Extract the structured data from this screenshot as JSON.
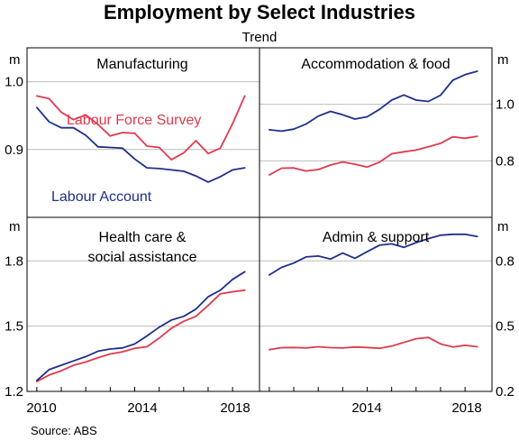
{
  "title": "Employment by Select Industries",
  "subtitle": "Trend",
  "source": "Source:   ABS",
  "left_unit": "m",
  "right_unit": "m",
  "x_ticks": [
    "2010",
    "2014",
    "2018"
  ],
  "colors": {
    "labour_force_survey": "#e03a4e",
    "labour_account": "#1f2f8c",
    "grid": "#bdbdbd",
    "axis": "#000000"
  },
  "chart_data": [
    {
      "type": "line",
      "panel_title": "Manufacturing",
      "ylim": [
        0.8,
        1.05
      ],
      "y_ticks": [
        0.9,
        1.0
      ],
      "y_tick_labels": [
        "0.9",
        "1.0"
      ],
      "y_axis_side": "left",
      "series_labels": [
        "Labour Force Survey",
        "Labour Account"
      ],
      "series": [
        {
          "name": "Labour Force Survey",
          "color_key": "labour_force_survey",
          "x": [
            2010.0,
            2010.5,
            2011.0,
            2011.5,
            2012.0,
            2012.5,
            2013.0,
            2013.5,
            2014.0,
            2014.5,
            2015.0,
            2015.5,
            2016.0,
            2016.5,
            2017.0,
            2017.5,
            2018.0,
            2018.5
          ],
          "values": [
            0.979,
            0.975,
            0.955,
            0.944,
            0.951,
            0.937,
            0.92,
            0.925,
            0.924,
            0.905,
            0.903,
            0.885,
            0.895,
            0.913,
            0.894,
            0.902,
            0.938,
            0.979
          ]
        },
        {
          "name": "Labour Account",
          "color_key": "labour_account",
          "x": [
            2010.0,
            2010.5,
            2011.0,
            2011.5,
            2012.0,
            2012.5,
            2013.0,
            2013.5,
            2014.0,
            2014.5,
            2015.0,
            2015.5,
            2016.0,
            2016.5,
            2017.0,
            2017.5,
            2018.0,
            2018.5
          ],
          "values": [
            0.962,
            0.941,
            0.932,
            0.932,
            0.921,
            0.904,
            0.903,
            0.902,
            0.886,
            0.873,
            0.872,
            0.87,
            0.868,
            0.861,
            0.852,
            0.86,
            0.87,
            0.873
          ]
        }
      ]
    },
    {
      "type": "line",
      "panel_title": "Accommodation & food",
      "ylim": [
        0.6,
        1.2
      ],
      "y_ticks": [
        0.8,
        1.0
      ],
      "y_tick_labels": [
        "0.8",
        "1.0"
      ],
      "y_axis_side": "right",
      "series": [
        {
          "name": "Labour Force Survey",
          "color_key": "labour_force_survey",
          "x": [
            2010.0,
            2010.5,
            2011.0,
            2011.5,
            2012.0,
            2012.5,
            2013.0,
            2013.5,
            2014.0,
            2014.5,
            2015.0,
            2015.5,
            2016.0,
            2016.5,
            2017.0,
            2017.5,
            2018.0,
            2018.5
          ],
          "values": [
            0.75,
            0.774,
            0.775,
            0.764,
            0.769,
            0.785,
            0.796,
            0.788,
            0.778,
            0.795,
            0.825,
            0.832,
            0.838,
            0.85,
            0.862,
            0.885,
            0.88,
            0.887
          ]
        },
        {
          "name": "Labour Account",
          "color_key": "labour_account",
          "x": [
            2010.0,
            2010.5,
            2011.0,
            2011.5,
            2012.0,
            2012.5,
            2013.0,
            2013.5,
            2014.0,
            2014.5,
            2015.0,
            2015.5,
            2016.0,
            2016.5,
            2017.0,
            2017.5,
            2018.0,
            2018.5
          ],
          "values": [
            0.91,
            0.905,
            0.912,
            0.93,
            0.958,
            0.975,
            0.963,
            0.948,
            0.956,
            0.982,
            1.015,
            1.033,
            1.015,
            1.01,
            1.032,
            1.085,
            1.105,
            1.117
          ]
        }
      ]
    },
    {
      "type": "line",
      "panel_title": "Health care & social assistance",
      "panel_title_lines": [
        "Health care &",
        "social assistance"
      ],
      "ylim": [
        1.2,
        2.0
      ],
      "y_ticks": [
        1.2,
        1.5,
        1.8
      ],
      "y_tick_labels": [
        "1.2",
        "1.5",
        "1.8"
      ],
      "y_axis_side": "left",
      "series": [
        {
          "name": "Labour Force Survey",
          "color_key": "labour_force_survey",
          "x": [
            2010.0,
            2010.5,
            2011.0,
            2011.5,
            2012.0,
            2012.5,
            2013.0,
            2013.5,
            2014.0,
            2014.5,
            2015.0,
            2015.5,
            2016.0,
            2016.5,
            2017.0,
            2017.5,
            2018.0,
            2018.5
          ],
          "values": [
            1.245,
            1.275,
            1.295,
            1.32,
            1.335,
            1.355,
            1.372,
            1.382,
            1.398,
            1.405,
            1.445,
            1.49,
            1.522,
            1.545,
            1.595,
            1.648,
            1.658,
            1.665
          ]
        },
        {
          "name": "Labour Account",
          "color_key": "labour_account",
          "x": [
            2010.0,
            2010.5,
            2011.0,
            2011.5,
            2012.0,
            2012.5,
            2013.0,
            2013.5,
            2014.0,
            2014.5,
            2015.0,
            2015.5,
            2016.0,
            2016.5,
            2017.0,
            2017.5,
            2018.0,
            2018.5
          ],
          "values": [
            1.25,
            1.3,
            1.32,
            1.34,
            1.36,
            1.385,
            1.395,
            1.4,
            1.418,
            1.455,
            1.495,
            1.528,
            1.545,
            1.578,
            1.635,
            1.665,
            1.715,
            1.75
          ]
        }
      ]
    },
    {
      "type": "line",
      "panel_title": "Admin & support",
      "ylim": [
        0.2,
        1.0
      ],
      "y_ticks": [
        0.2,
        0.5,
        0.8
      ],
      "y_tick_labels": [
        "0.2",
        "0.5",
        "0.8"
      ],
      "y_axis_side": "right",
      "series": [
        {
          "name": "Labour Force Survey",
          "color_key": "labour_force_survey",
          "x": [
            2010.0,
            2010.5,
            2011.0,
            2011.5,
            2012.0,
            2012.5,
            2013.0,
            2013.5,
            2014.0,
            2014.5,
            2015.0,
            2015.5,
            2016.0,
            2016.5,
            2017.0,
            2017.5,
            2018.0,
            2018.5
          ],
          "values": [
            0.392,
            0.401,
            0.402,
            0.4,
            0.405,
            0.401,
            0.4,
            0.404,
            0.402,
            0.398,
            0.408,
            0.425,
            0.442,
            0.448,
            0.418,
            0.404,
            0.412,
            0.405
          ]
        },
        {
          "name": "Labour Account",
          "color_key": "labour_account",
          "x": [
            2010.0,
            2010.5,
            2011.0,
            2011.5,
            2012.0,
            2012.5,
            2013.0,
            2013.5,
            2014.0,
            2014.5,
            2015.0,
            2015.5,
            2016.0,
            2016.5,
            2017.0,
            2017.5,
            2018.0,
            2018.5
          ],
          "values": [
            0.735,
            0.77,
            0.79,
            0.818,
            0.822,
            0.808,
            0.836,
            0.812,
            0.842,
            0.872,
            0.878,
            0.862,
            0.884,
            0.902,
            0.918,
            0.922,
            0.922,
            0.912
          ]
        }
      ]
    }
  ]
}
